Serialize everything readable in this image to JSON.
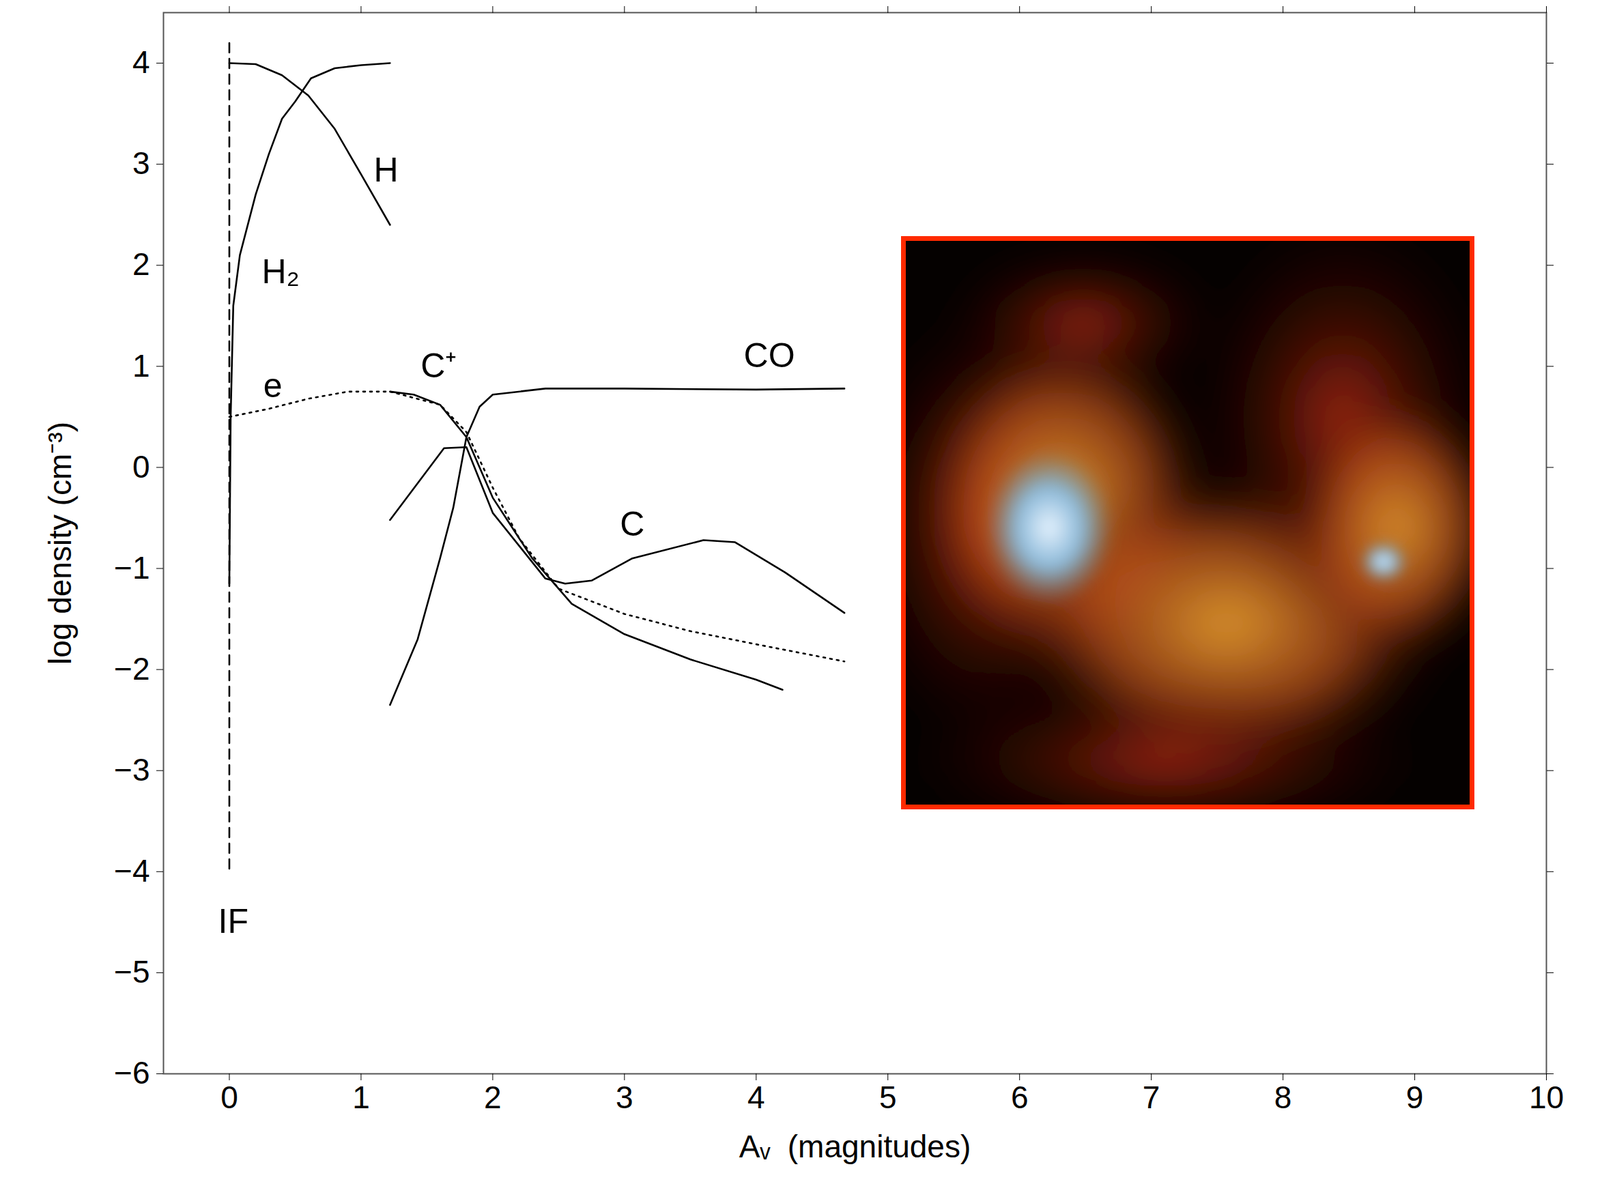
{
  "chart_data": {
    "type": "line",
    "x_label": "Aᵥ  (magnitudes)",
    "y_label": "log density (cm⁻³)",
    "xlim": [
      -0.5,
      10
    ],
    "ylim": [
      -6,
      4.5
    ],
    "xticks": [
      0,
      1,
      2,
      3,
      4,
      5,
      6,
      7,
      8,
      9,
      10
    ],
    "yticks": [
      -6,
      -5,
      -4,
      -3,
      -2,
      -1,
      0,
      1,
      2,
      3,
      4
    ],
    "series": [
      {
        "name": "H",
        "color": "#000000",
        "line_style": "solid",
        "x": [
          0,
          0.2,
          0.4,
          0.6,
          0.8,
          1.0,
          1.22
        ],
        "values": [
          4.0,
          3.99,
          3.88,
          3.68,
          3.35,
          2.9,
          2.4
        ],
        "label_at": [
          1.19,
          2.94
        ]
      },
      {
        "name": "H₂",
        "color": "#000000",
        "line_style": "solid",
        "x": [
          0,
          0.01,
          0.03,
          0.08,
          0.2,
          0.3,
          0.4,
          0.5,
          0.62,
          0.8,
          1.0,
          1.22
        ],
        "values": [
          -1.15,
          0.5,
          1.6,
          2.1,
          2.7,
          3.1,
          3.45,
          3.62,
          3.85,
          3.95,
          3.98,
          4.0
        ],
        "label_at": [
          0.39,
          1.93
        ]
      },
      {
        "name": "e",
        "color": "#000000",
        "line_style": "dotted",
        "x": [
          0,
          0.3,
          0.6,
          0.9,
          1.22,
          1.6,
          1.8,
          2.0,
          2.2,
          2.5,
          3.0,
          3.5,
          4.0,
          4.67
        ],
        "values": [
          0.5,
          0.58,
          0.68,
          0.75,
          0.75,
          0.62,
          0.35,
          -0.2,
          -0.7,
          -1.2,
          -1.45,
          -1.62,
          -1.75,
          -1.92
        ],
        "label_at": [
          0.33,
          0.8
        ]
      },
      {
        "name": "C⁺",
        "color": "#000000",
        "line_style": "solid",
        "x": [
          1.22,
          1.4,
          1.6,
          1.8,
          2.0,
          2.3,
          2.6,
          3.0,
          3.5,
          4.0,
          4.2
        ],
        "values": [
          0.75,
          0.72,
          0.62,
          0.3,
          -0.3,
          -0.9,
          -1.35,
          -1.65,
          -1.9,
          -2.1,
          -2.2
        ],
        "label_at": [
          1.59,
          1.0
        ]
      },
      {
        "name": "C",
        "color": "#000000",
        "line_style": "solid",
        "x": [
          1.22,
          1.63,
          1.8,
          2.0,
          2.4,
          2.55,
          2.75,
          3.06,
          3.6,
          3.84,
          4.22,
          4.67
        ],
        "values": [
          -0.52,
          0.19,
          0.2,
          -0.45,
          -1.1,
          -1.15,
          -1.12,
          -0.9,
          -0.72,
          -0.74,
          -1.04,
          -1.44
        ],
        "label_at": [
          3.06,
          -0.57
        ]
      },
      {
        "name": "CO",
        "color": "#000000",
        "line_style": "solid",
        "x": [
          1.22,
          1.43,
          1.6,
          1.7,
          1.8,
          1.9,
          2.0,
          2.4,
          3.0,
          4.0,
          4.67
        ],
        "values": [
          -2.35,
          -1.7,
          -0.9,
          -0.4,
          0.3,
          0.6,
          0.72,
          0.78,
          0.78,
          0.77,
          0.78
        ],
        "label_at": [
          4.1,
          1.1
        ]
      },
      {
        "name": "IF",
        "color": "#000000",
        "line_style": "dashed",
        "x": [
          0,
          0
        ],
        "values": [
          4.2,
          -4.0
        ],
        "label_at": [
          0.03,
          -4.5
        ]
      }
    ]
  }
}
